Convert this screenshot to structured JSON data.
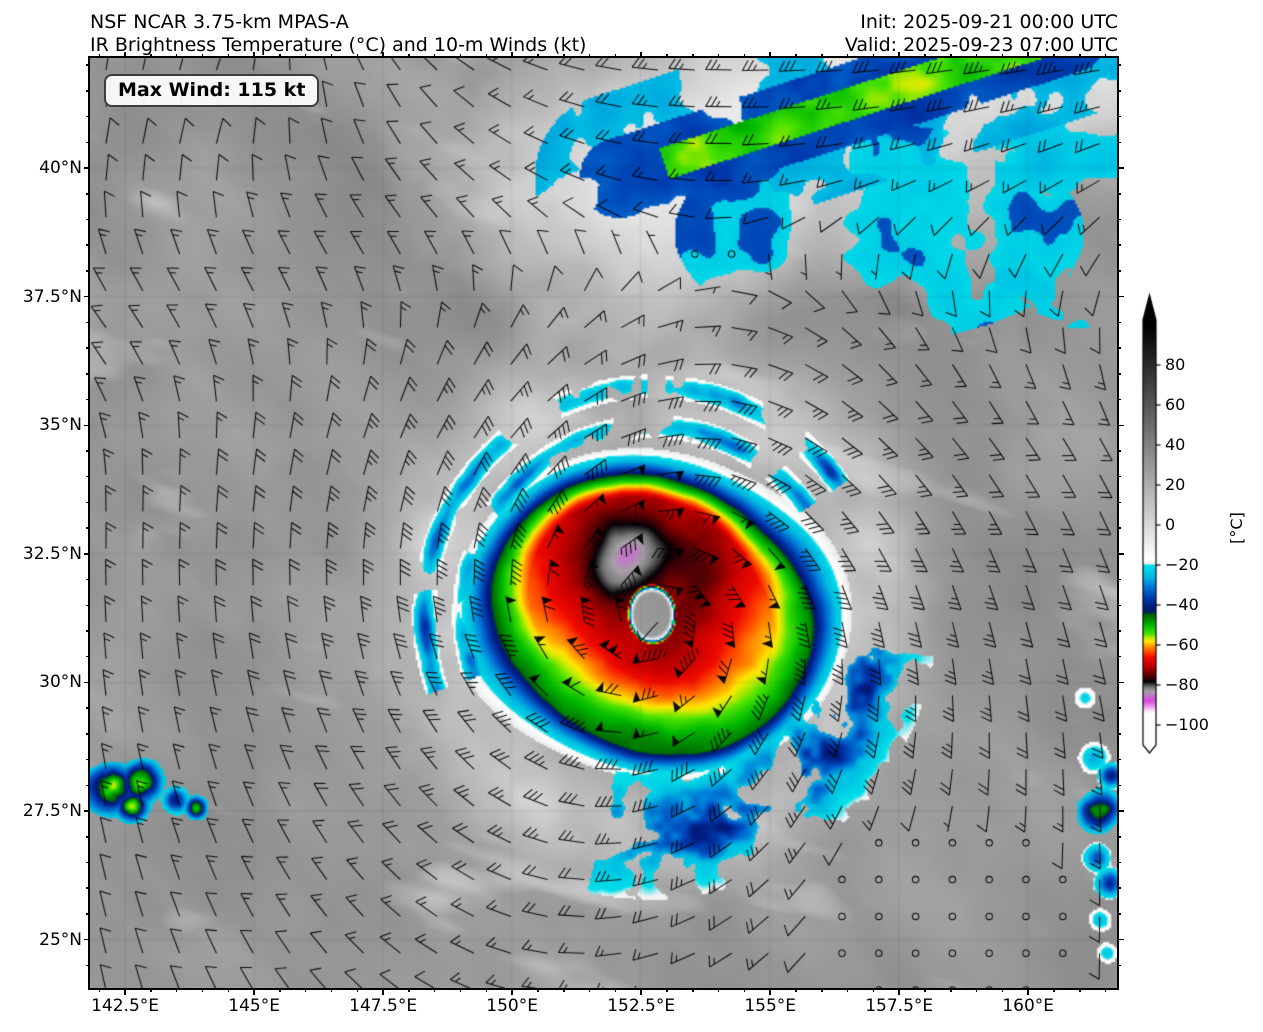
{
  "header": {
    "title_line1": "NSF NCAR 3.75-km MPAS-A",
    "title_line2": "IR Brightness Temperature (°C) and 10-m Winds (kt)",
    "init_time": "Init: 2025-09-21 00:00 UTC",
    "valid_time": "Valid: 2025-09-23 07:00 UTC"
  },
  "map": {
    "max_wind_label": "Max Wind: 115 kt",
    "extent": {
      "lon_min": 141.82,
      "lon_max": 161.72,
      "lat_min": 24.06,
      "lat_max": 42.14
    },
    "x_ticks": [
      {
        "lon": 142.5,
        "label": "142.5°E"
      },
      {
        "lon": 145.0,
        "label": "145°E"
      },
      {
        "lon": 147.5,
        "label": "147.5°E"
      },
      {
        "lon": 150.0,
        "label": "150°E"
      },
      {
        "lon": 152.5,
        "label": "152.5°E"
      },
      {
        "lon": 155.0,
        "label": "155°E"
      },
      {
        "lon": 157.5,
        "label": "157.5°E"
      },
      {
        "lon": 160.0,
        "label": "160°E"
      }
    ],
    "y_ticks": [
      {
        "lat": 40.0,
        "label": "40°N"
      },
      {
        "lat": 37.5,
        "label": "37.5°N"
      },
      {
        "lat": 35.0,
        "label": "35°N"
      },
      {
        "lat": 32.5,
        "label": "32.5°N"
      },
      {
        "lat": 30.0,
        "label": "30°N"
      },
      {
        "lat": 27.5,
        "label": "27.5°N"
      },
      {
        "lat": 25.0,
        "label": "25°N"
      }
    ]
  },
  "colorbar": {
    "unit_label": "[°C]",
    "ticks": [
      {
        "value": 80,
        "label": "80"
      },
      {
        "value": 60,
        "label": "60"
      },
      {
        "value": 40,
        "label": "40"
      },
      {
        "value": 20,
        "label": "20"
      },
      {
        "value": 0,
        "label": "0"
      },
      {
        "value": -20,
        "label": "−20"
      },
      {
        "value": -40,
        "label": "−40"
      },
      {
        "value": -60,
        "label": "−60"
      },
      {
        "value": -80,
        "label": "−80"
      },
      {
        "value": -100,
        "label": "−100"
      }
    ]
  },
  "chart_data": {
    "type": "heatmap",
    "title": "IR Brightness Temperature (°C) and 10-m Winds (kt)",
    "model": "NSF NCAR 3.75-km MPAS-A",
    "init": "2025-09-21 00:00 UTC",
    "valid": "2025-09-23 07:00 UTC",
    "units": "°C",
    "max_wind_kt": 115,
    "extent": {
      "lon_min_e": 141.82,
      "lon_max_e": 161.72,
      "lat_min_n": 24.06,
      "lat_max_n": 42.14
    },
    "cyclone": {
      "center_lon_e": 152.72,
      "center_lat_n": 31.32,
      "max_wind_kt": 115,
      "structure": "warm clear eye surrounded by −70 to −80 °C eyewall cloud, warmer spiral rings on the south side, thin green/blue/cyan cold rim, broad white cloud halo"
    },
    "features": [
      "intense tropical cyclone with clear eye near 152.7°E, 31.3°N",
      "cold frontal cloud band (−20 to −55 °C, green core) across the northeast corner",
      "small convective cluster near 142°E, 27.6°N at the west edge",
      "convective cells along the eastern boundary near 161°E, 26–28°N",
      "calm-wind circles (ridge) near 157–159°E, 25.5–27°N",
      "mid-gray warm ocean background with white cloud streaks"
    ],
    "colorbar_range": {
      "vmin": -110,
      "vmax": 100,
      "tick_values": [
        80,
        60,
        40,
        20,
        0,
        -20,
        -40,
        -60,
        -80,
        -100
      ]
    },
    "colormap_stops": [
      [
        100,
        "#000000"
      ],
      [
        -17,
        "#ffffff"
      ],
      [
        -19,
        "#f2f2f2"
      ],
      [
        -20,
        "#00dee8"
      ],
      [
        -26,
        "#00b9e2"
      ],
      [
        -31,
        "#0073d4"
      ],
      [
        -36,
        "#003caf"
      ],
      [
        -41,
        "#00197d"
      ],
      [
        -43.5,
        "#00235f"
      ],
      [
        -44.5,
        "#005f00"
      ],
      [
        -50,
        "#00b900"
      ],
      [
        -54,
        "#46e100"
      ],
      [
        -56.5,
        "#c8eb00"
      ],
      [
        -58,
        "#ffe600"
      ],
      [
        -60,
        "#ffa500"
      ],
      [
        -63,
        "#ff5000"
      ],
      [
        -66,
        "#f00a00"
      ],
      [
        -70,
        "#c30000"
      ],
      [
        -73,
        "#870000"
      ],
      [
        -76,
        "#410005"
      ],
      [
        -78,
        "#050005"
      ],
      [
        -79.5,
        "#3c3c3c"
      ],
      [
        -81,
        "#787878"
      ],
      [
        -83,
        "#a5a0a5"
      ],
      [
        -85,
        "#c378c8"
      ],
      [
        -87.5,
        "#d74bdc"
      ],
      [
        -90,
        "#e687e8"
      ],
      [
        -92.5,
        "#fadcfa"
      ],
      [
        -94,
        "#ffffff"
      ],
      [
        -110,
        "#ffffff"
      ]
    ],
    "wind_barb_convention": {
      "half_barb_kt": 5,
      "full_barb_kt": 10,
      "pennant_kt": 50,
      "calm_circle_below_kt": 2.5
    }
  }
}
